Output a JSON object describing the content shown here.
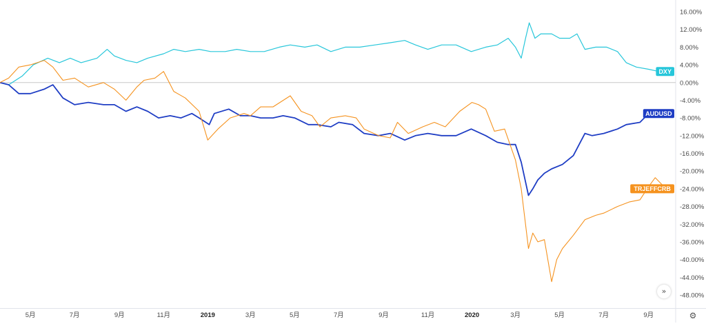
{
  "controls": {
    "scroll_icon": "»",
    "settings_icon": "⚙"
  },
  "chart_data": {
    "type": "line",
    "ylim": [
      -48,
      16
    ],
    "y_ticks": [
      "16.00%",
      "12.00%",
      "8.00%",
      "4.00%",
      "0.00%",
      "-4.00%",
      "-8.00%",
      "-12.00%",
      "-16.00%",
      "-20.00%",
      "-24.00%",
      "-28.00%",
      "-32.00%",
      "-36.00%",
      "-40.00%",
      "-44.00%",
      "-48.00%"
    ],
    "x_ticks": [
      {
        "label": "5月",
        "x": "2018-05-01",
        "bold": false
      },
      {
        "label": "7月",
        "x": "2018-07-01",
        "bold": false
      },
      {
        "label": "9月",
        "x": "2018-09-01",
        "bold": false
      },
      {
        "label": "11月",
        "x": "2018-11-01",
        "bold": false
      },
      {
        "label": "2019",
        "x": "2019-01-01",
        "bold": true
      },
      {
        "label": "3月",
        "x": "2019-03-01",
        "bold": false
      },
      {
        "label": "5月",
        "x": "2019-05-01",
        "bold": false
      },
      {
        "label": "7月",
        "x": "2019-07-01",
        "bold": false
      },
      {
        "label": "9月",
        "x": "2019-09-01",
        "bold": false
      },
      {
        "label": "11月",
        "x": "2019-11-01",
        "bold": false
      },
      {
        "label": "2020",
        "x": "2020-01-01",
        "bold": true
      },
      {
        "label": "3月",
        "x": "2020-03-01",
        "bold": false
      },
      {
        "label": "5月",
        "x": "2020-05-01",
        "bold": false
      },
      {
        "label": "7月",
        "x": "2020-07-01",
        "bold": false
      },
      {
        "label": "9月",
        "x": "2020-09-01",
        "bold": false
      }
    ],
    "x_range": [
      "2018-03-20",
      "2020-09-25"
    ],
    "zero_line": true,
    "series": [
      {
        "name": "DXY",
        "color": "#26c6da",
        "width": 1.2,
        "points": [
          [
            "2018-03-20",
            0
          ],
          [
            "2018-04-01",
            -0.5
          ],
          [
            "2018-04-20",
            1.5
          ],
          [
            "2018-05-05",
            4
          ],
          [
            "2018-05-25",
            5.5
          ],
          [
            "2018-06-10",
            4.5
          ],
          [
            "2018-06-25",
            5.5
          ],
          [
            "2018-07-10",
            4.5
          ],
          [
            "2018-08-01",
            5.5
          ],
          [
            "2018-08-15",
            7.5
          ],
          [
            "2018-08-25",
            6
          ],
          [
            "2018-09-10",
            5
          ],
          [
            "2018-09-25",
            4.5
          ],
          [
            "2018-10-10",
            5.5
          ],
          [
            "2018-11-01",
            6.5
          ],
          [
            "2018-11-15",
            7.5
          ],
          [
            "2018-12-01",
            7
          ],
          [
            "2018-12-20",
            7.5
          ],
          [
            "2019-01-05",
            7
          ],
          [
            "2019-01-25",
            7
          ],
          [
            "2019-02-10",
            7.5
          ],
          [
            "2019-03-01",
            7
          ],
          [
            "2019-03-20",
            7
          ],
          [
            "2019-04-10",
            8
          ],
          [
            "2019-04-25",
            8.5
          ],
          [
            "2019-05-15",
            8
          ],
          [
            "2019-06-01",
            8.5
          ],
          [
            "2019-06-20",
            7
          ],
          [
            "2019-07-10",
            8
          ],
          [
            "2019-07-30",
            8
          ],
          [
            "2019-08-20",
            8.5
          ],
          [
            "2019-09-10",
            9
          ],
          [
            "2019-09-30",
            9.5
          ],
          [
            "2019-10-15",
            8.5
          ],
          [
            "2019-11-01",
            7.5
          ],
          [
            "2019-11-20",
            8.5
          ],
          [
            "2019-12-10",
            8.5
          ],
          [
            "2019-12-31",
            7
          ],
          [
            "2020-01-20",
            8
          ],
          [
            "2020-02-05",
            8.5
          ],
          [
            "2020-02-20",
            10
          ],
          [
            "2020-03-01",
            8
          ],
          [
            "2020-03-09",
            5.5
          ],
          [
            "2020-03-15",
            10
          ],
          [
            "2020-03-20",
            13.5
          ],
          [
            "2020-03-28",
            10
          ],
          [
            "2020-04-05",
            11
          ],
          [
            "2020-04-20",
            11
          ],
          [
            "2020-05-01",
            10
          ],
          [
            "2020-05-15",
            10
          ],
          [
            "2020-05-25",
            11
          ],
          [
            "2020-06-05",
            7.5
          ],
          [
            "2020-06-20",
            8
          ],
          [
            "2020-07-05",
            8
          ],
          [
            "2020-07-20",
            7
          ],
          [
            "2020-08-01",
            4.5
          ],
          [
            "2020-08-15",
            3.5
          ],
          [
            "2020-09-01",
            3
          ],
          [
            "2020-09-15",
            2.5
          ],
          [
            "2020-09-25",
            2.5
          ]
        ]
      },
      {
        "name": "AUDUSD",
        "color": "#1e3dc4",
        "width": 1.8,
        "points": [
          [
            "2018-03-20",
            0
          ],
          [
            "2018-04-01",
            -0.5
          ],
          [
            "2018-04-15",
            -2.5
          ],
          [
            "2018-05-01",
            -2.5
          ],
          [
            "2018-05-20",
            -1.5
          ],
          [
            "2018-06-01",
            -0.5
          ],
          [
            "2018-06-15",
            -3.5
          ],
          [
            "2018-07-01",
            -5
          ],
          [
            "2018-07-20",
            -4.5
          ],
          [
            "2018-08-10",
            -5
          ],
          [
            "2018-08-25",
            -5
          ],
          [
            "2018-09-10",
            -6.5
          ],
          [
            "2018-09-25",
            -5.5
          ],
          [
            "2018-10-10",
            -6.5
          ],
          [
            "2018-10-25",
            -8
          ],
          [
            "2018-11-10",
            -7.5
          ],
          [
            "2018-11-25",
            -8
          ],
          [
            "2018-12-10",
            -7
          ],
          [
            "2018-12-20",
            -8
          ],
          [
            "2019-01-03",
            -9.5
          ],
          [
            "2019-01-10",
            -7
          ],
          [
            "2019-01-30",
            -6
          ],
          [
            "2019-02-15",
            -7.5
          ],
          [
            "2019-03-01",
            -7.5
          ],
          [
            "2019-03-15",
            -8
          ],
          [
            "2019-04-01",
            -8
          ],
          [
            "2019-04-15",
            -7.5
          ],
          [
            "2019-05-01",
            -8
          ],
          [
            "2019-05-20",
            -9.5
          ],
          [
            "2019-06-01",
            -9.5
          ],
          [
            "2019-06-20",
            -10
          ],
          [
            "2019-07-01",
            -9
          ],
          [
            "2019-07-20",
            -9.5
          ],
          [
            "2019-08-05",
            -11.5
          ],
          [
            "2019-08-25",
            -12
          ],
          [
            "2019-09-10",
            -11.5
          ],
          [
            "2019-09-30",
            -13
          ],
          [
            "2019-10-15",
            -12
          ],
          [
            "2019-11-01",
            -11.5
          ],
          [
            "2019-11-20",
            -12
          ],
          [
            "2019-12-10",
            -12
          ],
          [
            "2019-12-31",
            -10.5
          ],
          [
            "2020-01-20",
            -12
          ],
          [
            "2020-02-05",
            -13.5
          ],
          [
            "2020-02-20",
            -14
          ],
          [
            "2020-03-01",
            -14
          ],
          [
            "2020-03-09",
            -18
          ],
          [
            "2020-03-19",
            -25.5
          ],
          [
            "2020-03-25",
            -24
          ],
          [
            "2020-04-01",
            -22
          ],
          [
            "2020-04-10",
            -20.5
          ],
          [
            "2020-04-20",
            -19.5
          ],
          [
            "2020-05-05",
            -18.5
          ],
          [
            "2020-05-20",
            -16.5
          ],
          [
            "2020-06-05",
            -11.5
          ],
          [
            "2020-06-15",
            -12
          ],
          [
            "2020-07-01",
            -11.5
          ],
          [
            "2020-07-20",
            -10.5
          ],
          [
            "2020-08-01",
            -9.5
          ],
          [
            "2020-08-20",
            -9
          ],
          [
            "2020-09-01",
            -7
          ],
          [
            "2020-09-10",
            -6.5
          ],
          [
            "2020-09-25",
            -7
          ]
        ]
      },
      {
        "name": "TRJEFFCRB",
        "color": "#f5921e",
        "width": 1.1,
        "points": [
          [
            "2018-03-20",
            0
          ],
          [
            "2018-04-01",
            1
          ],
          [
            "2018-04-15",
            3.5
          ],
          [
            "2018-05-01",
            4
          ],
          [
            "2018-05-20",
            5
          ],
          [
            "2018-06-01",
            3.5
          ],
          [
            "2018-06-15",
            0.5
          ],
          [
            "2018-07-01",
            1
          ],
          [
            "2018-07-20",
            -1
          ],
          [
            "2018-08-10",
            0
          ],
          [
            "2018-08-25",
            -1.5
          ],
          [
            "2018-09-10",
            -4
          ],
          [
            "2018-09-25",
            -1
          ],
          [
            "2018-10-05",
            0.5
          ],
          [
            "2018-10-20",
            1
          ],
          [
            "2018-11-01",
            2.5
          ],
          [
            "2018-11-15",
            -2
          ],
          [
            "2018-12-01",
            -3.5
          ],
          [
            "2018-12-20",
            -6.5
          ],
          [
            "2019-01-01",
            -13
          ],
          [
            "2019-01-15",
            -10.5
          ],
          [
            "2019-02-01",
            -8
          ],
          [
            "2019-02-20",
            -7
          ],
          [
            "2019-03-01",
            -7.5
          ],
          [
            "2019-03-15",
            -5.5
          ],
          [
            "2019-04-01",
            -5.5
          ],
          [
            "2019-04-25",
            -3
          ],
          [
            "2019-05-10",
            -6.5
          ],
          [
            "2019-05-25",
            -7.5
          ],
          [
            "2019-06-05",
            -10
          ],
          [
            "2019-06-20",
            -8
          ],
          [
            "2019-07-10",
            -7.5
          ],
          [
            "2019-07-25",
            -8
          ],
          [
            "2019-08-05",
            -10.5
          ],
          [
            "2019-08-25",
            -12
          ],
          [
            "2019-09-10",
            -12.5
          ],
          [
            "2019-09-20",
            -9
          ],
          [
            "2019-10-05",
            -11.5
          ],
          [
            "2019-10-25",
            -10
          ],
          [
            "2019-11-10",
            -9
          ],
          [
            "2019-11-25",
            -10
          ],
          [
            "2019-12-15",
            -6.5
          ],
          [
            "2020-01-01",
            -4.5
          ],
          [
            "2020-01-10",
            -5
          ],
          [
            "2020-01-20",
            -6
          ],
          [
            "2020-02-01",
            -11
          ],
          [
            "2020-02-15",
            -10.5
          ],
          [
            "2020-03-01",
            -17.5
          ],
          [
            "2020-03-09",
            -24
          ],
          [
            "2020-03-19",
            -37.5
          ],
          [
            "2020-03-25",
            -34
          ],
          [
            "2020-04-01",
            -36
          ],
          [
            "2020-04-10",
            -35.5
          ],
          [
            "2020-04-20",
            -45
          ],
          [
            "2020-04-27",
            -40
          ],
          [
            "2020-05-05",
            -37.5
          ],
          [
            "2020-05-20",
            -34.5
          ],
          [
            "2020-06-05",
            -31
          ],
          [
            "2020-06-20",
            -30
          ],
          [
            "2020-07-01",
            -29.5
          ],
          [
            "2020-07-20",
            -28
          ],
          [
            "2020-08-05",
            -27
          ],
          [
            "2020-08-20",
            -26.5
          ],
          [
            "2020-09-01",
            -23.5
          ],
          [
            "2020-09-10",
            -21.5
          ],
          [
            "2020-09-25",
            -24
          ]
        ]
      }
    ],
    "tags": [
      {
        "label": "DXY",
        "value": 2.5,
        "color": "#26c6da"
      },
      {
        "label": "AUDUSD",
        "value": -7,
        "color": "#1e3dc4"
      },
      {
        "label": "TRJEFFCRB",
        "value": -24,
        "color": "#f5921e"
      }
    ]
  }
}
